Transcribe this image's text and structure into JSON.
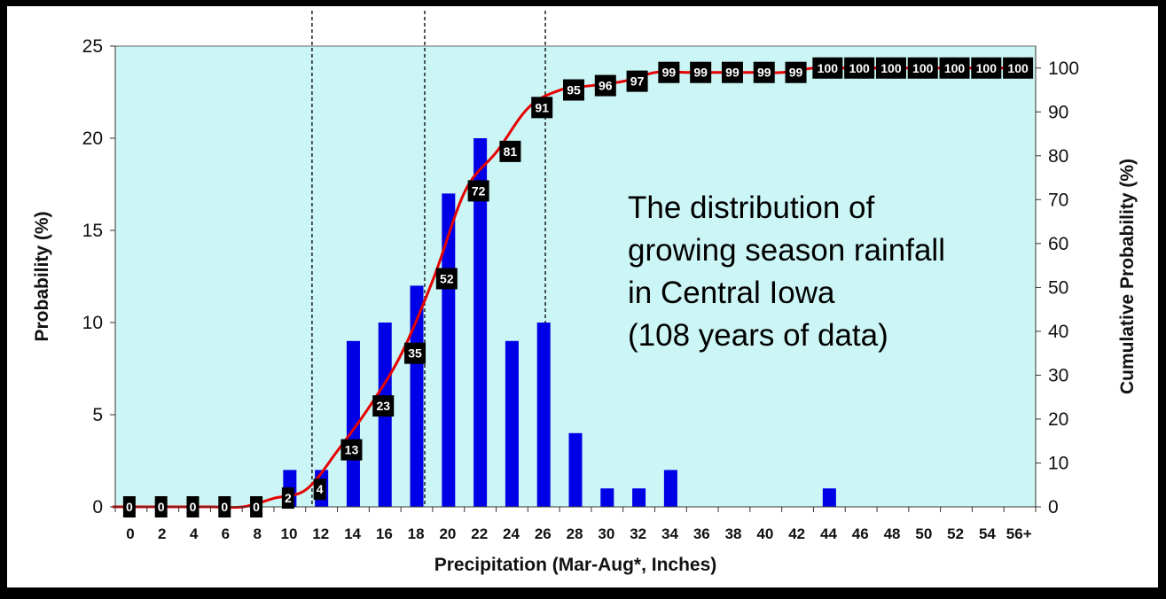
{
  "chart_data": {
    "type": "bar",
    "title": "",
    "xlabel": "Precipitation (Mar-Aug*, Inches)",
    "ylabel": "Probability (%)",
    "y2label": "Cumulative Probability (%)",
    "ylim": [
      0,
      25
    ],
    "y_ticks": [
      0,
      5,
      10,
      15,
      20,
      25
    ],
    "y2lim": [
      0,
      105
    ],
    "y2_ticks": [
      0,
      10,
      20,
      30,
      40,
      50,
      60,
      70,
      80,
      90,
      100
    ],
    "categories": [
      "0",
      "2",
      "4",
      "6",
      "8",
      "10",
      "12",
      "14",
      "16",
      "18",
      "20",
      "22",
      "24",
      "26",
      "28",
      "30",
      "32",
      "34",
      "36",
      "38",
      "40",
      "42",
      "44",
      "46",
      "48",
      "50",
      "52",
      "54",
      "56+"
    ],
    "series": [
      {
        "values": [
          0,
          0,
          0,
          0,
          0,
          2,
          2,
          9,
          10,
          12,
          17,
          20,
          9,
          10,
          4,
          1,
          1,
          2,
          0,
          0,
          0,
          0,
          1,
          0,
          0,
          0,
          0,
          0,
          0
        ]
      },
      {
        "cumulative": [
          0,
          0,
          0,
          0,
          0,
          2,
          4,
          13,
          23,
          35,
          52,
          72,
          81,
          91,
          95,
          96,
          97,
          99,
          99,
          99,
          99,
          99,
          100,
          100,
          100,
          100,
          100,
          100,
          100
        ]
      }
    ],
    "cumulative_label_positions": [
      1,
      3,
      5,
      7,
      9,
      11,
      13,
      15,
      17,
      19,
      21,
      23,
      25,
      27,
      29,
      31,
      33,
      35,
      37,
      39,
      41,
      43,
      45,
      47,
      49,
      51,
      53,
      55,
      57
    ],
    "cumulative_labels": [
      "0",
      "0",
      "0",
      "0",
      "0",
      "2",
      "4",
      "13",
      "23",
      "35",
      "52",
      "72",
      "81",
      "91",
      "95",
      "96",
      "97",
      "99",
      "99",
      "99",
      "99",
      "99",
      "100",
      "100",
      "100",
      "100",
      "100",
      "100",
      "100"
    ],
    "reference_lines_x": [
      12.4,
      19.5,
      27.1
    ],
    "annotation": [
      "The distribution of",
      "growing season rainfall",
      "in Central Iowa",
      "(108 years of data)"
    ],
    "grid": false,
    "legend": "none",
    "colors": {
      "plot_background": "#ccf5f5",
      "bars": "#0000e6",
      "cumulative_line": "#e60000",
      "label_box": "#000000",
      "reference_line": "#000000"
    }
  }
}
